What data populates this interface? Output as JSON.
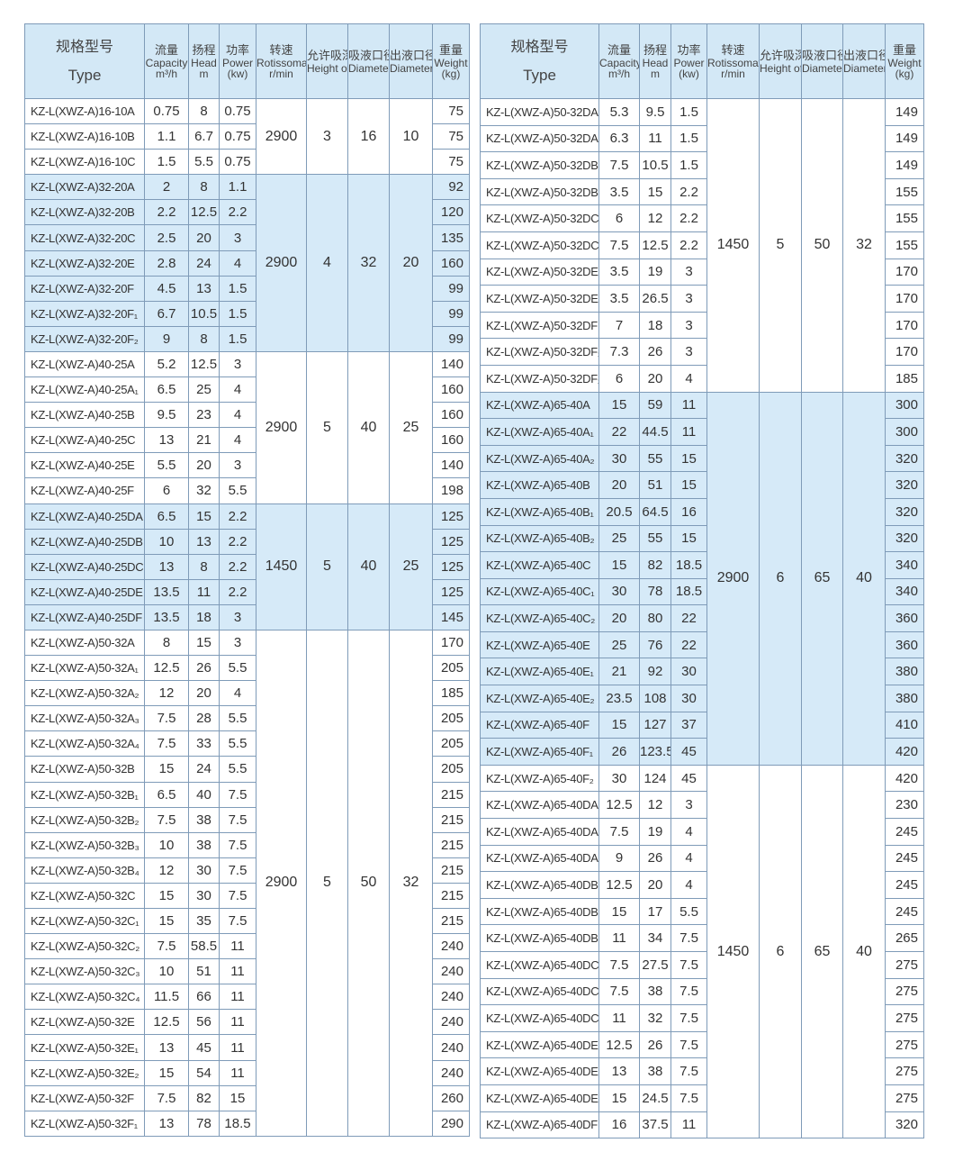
{
  "headers": [
    {
      "cn": "规格型号",
      "en": "Type"
    },
    {
      "cn": "流量",
      "en": "Capacity",
      "unit": "m³/h"
    },
    {
      "cn": "扬程",
      "en": "Head",
      "unit": "m"
    },
    {
      "cn": "功率",
      "en": "Power",
      "unit": "(kw)"
    },
    {
      "cn": "转速",
      "en": "Rotissomat Speed",
      "unit": "r/min"
    },
    {
      "cn": "允许吸深",
      "en": "Height of Suciton"
    },
    {
      "cn": "吸液口径",
      "en": "Diameter of Inlet"
    },
    {
      "cn": "出液口径",
      "en": "Diameter of Outlet"
    },
    {
      "cn": "重量",
      "en": "Weight",
      "unit": "(kg)"
    }
  ],
  "left_table": [
    {
      "shade": false,
      "speed": "2900",
      "height": "3",
      "inlet": "16",
      "outlet": "10",
      "rows": [
        [
          "KZ-L(XWZ-A)16-10A",
          "0.75",
          "8",
          "0.75",
          "75"
        ],
        [
          "KZ-L(XWZ-A)16-10B",
          "1.1",
          "6.7",
          "0.75",
          "75"
        ],
        [
          "KZ-L(XWZ-A)16-10C",
          "1.5",
          "5.5",
          "0.75",
          "75"
        ]
      ]
    },
    {
      "shade": true,
      "speed": "2900",
      "height": "4",
      "inlet": "32",
      "outlet": "20",
      "rows": [
        [
          "KZ-L(XWZ-A)32-20A",
          "2",
          "8",
          "1.1",
          "92"
        ],
        [
          "KZ-L(XWZ-A)32-20B",
          "2.2",
          "12.5",
          "2.2",
          "120"
        ],
        [
          "KZ-L(XWZ-A)32-20C",
          "2.5",
          "20",
          "3",
          "135"
        ],
        [
          "KZ-L(XWZ-A)32-20E",
          "2.8",
          "24",
          "4",
          "160"
        ],
        [
          "KZ-L(XWZ-A)32-20F",
          "4.5",
          "13",
          "1.5",
          "99"
        ],
        [
          "KZ-L(XWZ-A)32-20F₁",
          "6.7",
          "10.5",
          "1.5",
          "99"
        ],
        [
          "KZ-L(XWZ-A)32-20F₂",
          "9",
          "8",
          "1.5",
          "99"
        ]
      ]
    },
    {
      "shade": false,
      "speed": "2900",
      "height": "5",
      "inlet": "40",
      "outlet": "25",
      "rows": [
        [
          "KZ-L(XWZ-A)40-25A",
          "5.2",
          "12.5",
          "3",
          "140"
        ],
        [
          "KZ-L(XWZ-A)40-25A₁",
          "6.5",
          "25",
          "4",
          "160"
        ],
        [
          "KZ-L(XWZ-A)40-25B",
          "9.5",
          "23",
          "4",
          "160"
        ],
        [
          "KZ-L(XWZ-A)40-25C",
          "13",
          "21",
          "4",
          "160"
        ],
        [
          "KZ-L(XWZ-A)40-25E",
          "5.5",
          "20",
          "3",
          "140"
        ],
        [
          "KZ-L(XWZ-A)40-25F",
          "6",
          "32",
          "5.5",
          "198"
        ]
      ]
    },
    {
      "shade": true,
      "speed": "1450",
      "height": "5",
      "inlet": "40",
      "outlet": "25",
      "rows": [
        [
          "KZ-L(XWZ-A)40-25DA",
          "6.5",
          "15",
          "2.2",
          "125"
        ],
        [
          "KZ-L(XWZ-A)40-25DB",
          "10",
          "13",
          "2.2",
          "125"
        ],
        [
          "KZ-L(XWZ-A)40-25DC",
          "13",
          "8",
          "2.2",
          "125"
        ],
        [
          "KZ-L(XWZ-A)40-25DE",
          "13.5",
          "11",
          "2.2",
          "125"
        ],
        [
          "KZ-L(XWZ-A)40-25DF",
          "13.5",
          "18",
          "3",
          "145"
        ]
      ]
    },
    {
      "shade": false,
      "speed": "2900",
      "height": "5",
      "inlet": "50",
      "outlet": "32",
      "rows": [
        [
          "KZ-L(XWZ-A)50-32A",
          "8",
          "15",
          "3",
          "170"
        ],
        [
          "KZ-L(XWZ-A)50-32A₁",
          "12.5",
          "26",
          "5.5",
          "205"
        ],
        [
          "KZ-L(XWZ-A)50-32A₂",
          "12",
          "20",
          "4",
          "185"
        ],
        [
          "KZ-L(XWZ-A)50-32A₃",
          "7.5",
          "28",
          "5.5",
          "205"
        ],
        [
          "KZ-L(XWZ-A)50-32A₄",
          "7.5",
          "33",
          "5.5",
          "205"
        ],
        [
          "KZ-L(XWZ-A)50-32B",
          "15",
          "24",
          "5.5",
          "205"
        ],
        [
          "KZ-L(XWZ-A)50-32B₁",
          "6.5",
          "40",
          "7.5",
          "215"
        ],
        [
          "KZ-L(XWZ-A)50-32B₂",
          "7.5",
          "38",
          "7.5",
          "215"
        ],
        [
          "KZ-L(XWZ-A)50-32B₃",
          "10",
          "38",
          "7.5",
          "215"
        ],
        [
          "KZ-L(XWZ-A)50-32B₄",
          "12",
          "30",
          "7.5",
          "215"
        ],
        [
          "KZ-L(XWZ-A)50-32C",
          "15",
          "30",
          "7.5",
          "215"
        ],
        [
          "KZ-L(XWZ-A)50-32C₁",
          "15",
          "35",
          "7.5",
          "215"
        ],
        [
          "KZ-L(XWZ-A)50-32C₂",
          "7.5",
          "58.5",
          "11",
          "240"
        ],
        [
          "KZ-L(XWZ-A)50-32C₃",
          "10",
          "51",
          "11",
          "240"
        ],
        [
          "KZ-L(XWZ-A)50-32C₄",
          "11.5",
          "66",
          "11",
          "240"
        ],
        [
          "KZ-L(XWZ-A)50-32E",
          "12.5",
          "56",
          "11",
          "240"
        ],
        [
          "KZ-L(XWZ-A)50-32E₁",
          "13",
          "45",
          "11",
          "240"
        ],
        [
          "KZ-L(XWZ-A)50-32E₂",
          "15",
          "54",
          "11",
          "240"
        ],
        [
          "KZ-L(XWZ-A)50-32F",
          "7.5",
          "82",
          "15",
          "260"
        ],
        [
          "KZ-L(XWZ-A)50-32F₁",
          "13",
          "78",
          "18.5",
          "290"
        ]
      ]
    }
  ],
  "right_table": [
    {
      "shade": false,
      "speed": "1450",
      "height": "5",
      "inlet": "50",
      "outlet": "32",
      "rows": [
        [
          "KZ-L(XWZ-A)50-32DA",
          "5.3",
          "9.5",
          "1.5",
          "149"
        ],
        [
          "KZ-L(XWZ-A)50-32DA₁",
          "6.3",
          "11",
          "1.5",
          "149"
        ],
        [
          "KZ-L(XWZ-A)50-32DB",
          "7.5",
          "10.5",
          "1.5",
          "149"
        ],
        [
          "KZ-L(XWZ-A)50-32DB₁",
          "3.5",
          "15",
          "2.2",
          "155"
        ],
        [
          "KZ-L(XWZ-A)50-32DC",
          "6",
          "12",
          "2.2",
          "155"
        ],
        [
          "KZ-L(XWZ-A)50-32DC₁",
          "7.5",
          "12.5",
          "2.2",
          "155"
        ],
        [
          "KZ-L(XWZ-A)50-32DE",
          "3.5",
          "19",
          "3",
          "170"
        ],
        [
          "KZ-L(XWZ-A)50-32DE₁",
          "3.5",
          "26.5",
          "3",
          "170"
        ],
        [
          "KZ-L(XWZ-A)50-32DF",
          "7",
          "18",
          "3",
          "170"
        ],
        [
          "KZ-L(XWZ-A)50-32DF₁",
          "7.3",
          "26",
          "3",
          "170"
        ],
        [
          "KZ-L(XWZ-A)50-32DF₂",
          "6",
          "20",
          "4",
          "185"
        ]
      ]
    },
    {
      "shade": true,
      "speed": "2900",
      "height": "6",
      "inlet": "65",
      "outlet": "40",
      "rows": [
        [
          "KZ-L(XWZ-A)65-40A",
          "15",
          "59",
          "11",
          "300"
        ],
        [
          "KZ-L(XWZ-A)65-40A₁",
          "22",
          "44.5",
          "11",
          "300"
        ],
        [
          "KZ-L(XWZ-A)65-40A₂",
          "30",
          "55",
          "15",
          "320"
        ],
        [
          "KZ-L(XWZ-A)65-40B",
          "20",
          "51",
          "15",
          "320"
        ],
        [
          "KZ-L(XWZ-A)65-40B₁",
          "20.5",
          "64.5",
          "16",
          "320"
        ],
        [
          "KZ-L(XWZ-A)65-40B₂",
          "25",
          "55",
          "15",
          "320"
        ],
        [
          "KZ-L(XWZ-A)65-40C",
          "15",
          "82",
          "18.5",
          "340"
        ],
        [
          "KZ-L(XWZ-A)65-40C₁",
          "30",
          "78",
          "18.5",
          "340"
        ],
        [
          "KZ-L(XWZ-A)65-40C₂",
          "20",
          "80",
          "22",
          "360"
        ],
        [
          "KZ-L(XWZ-A)65-40E",
          "25",
          "76",
          "22",
          "360"
        ],
        [
          "KZ-L(XWZ-A)65-40E₁",
          "21",
          "92",
          "30",
          "380"
        ],
        [
          "KZ-L(XWZ-A)65-40E₂",
          "23.5",
          "108",
          "30",
          "380"
        ],
        [
          "KZ-L(XWZ-A)65-40F",
          "15",
          "127",
          "37",
          "410"
        ],
        [
          "KZ-L(XWZ-A)65-40F₁",
          "26",
          "123.5",
          "45",
          "420"
        ]
      ]
    },
    {
      "shade": false,
      "speed": "1450",
      "height": "6",
      "inlet": "65",
      "outlet": "40",
      "rows": [
        [
          "KZ-L(XWZ-A)65-40F₂",
          "30",
          "124",
          "45",
          "420"
        ],
        [
          "KZ-L(XWZ-A)65-40DA",
          "12.5",
          "12",
          "3",
          "230"
        ],
        [
          "KZ-L(XWZ-A)65-40DA₁",
          "7.5",
          "19",
          "4",
          "245"
        ],
        [
          "KZ-L(XWZ-A)65-40DA₂",
          "9",
          "26",
          "4",
          "245"
        ],
        [
          "KZ-L(XWZ-A)65-40DB",
          "12.5",
          "20",
          "4",
          "245"
        ],
        [
          "KZ-L(XWZ-A)65-40DB₁",
          "15",
          "17",
          "5.5",
          "245"
        ],
        [
          "KZ-L(XWZ-A)65-40DB₂",
          "11",
          "34",
          "7.5",
          "265"
        ],
        [
          "KZ-L(XWZ-A)65-40DC",
          "7.5",
          "27.5",
          "7.5",
          "275"
        ],
        [
          "KZ-L(XWZ-A)65-40DC₁",
          "7.5",
          "38",
          "7.5",
          "275"
        ],
        [
          "KZ-L(XWZ-A)65-40DC₂",
          "11",
          "32",
          "7.5",
          "275"
        ],
        [
          "KZ-L(XWZ-A)65-40DE",
          "12.5",
          "26",
          "7.5",
          "275"
        ],
        [
          "KZ-L(XWZ-A)65-40DE₁",
          "13",
          "38",
          "7.5",
          "275"
        ],
        [
          "KZ-L(XWZ-A)65-40DE₂",
          "15",
          "24.5",
          "7.5",
          "275"
        ],
        [
          "KZ-L(XWZ-A)65-40DF",
          "16",
          "37.5",
          "11",
          "320"
        ]
      ]
    }
  ]
}
